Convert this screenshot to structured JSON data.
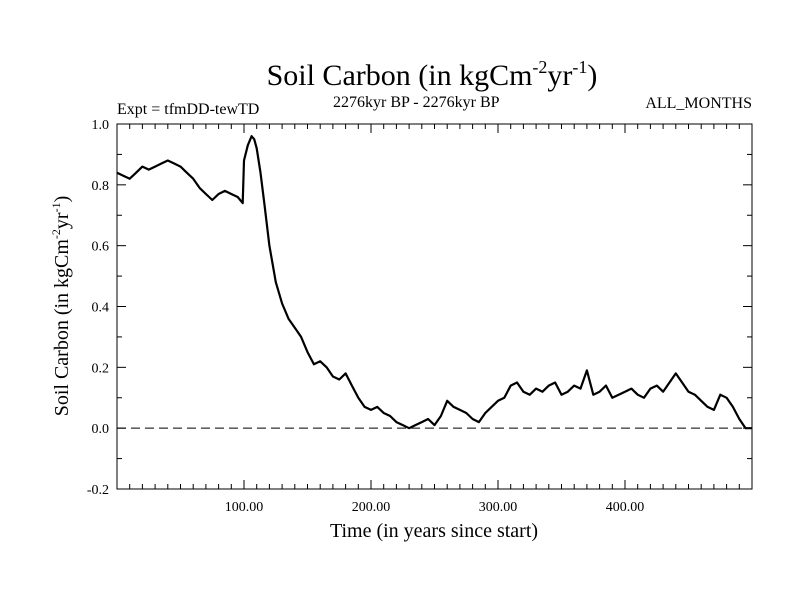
{
  "chart_data": {
    "type": "line",
    "title": {
      "prefix": "Soil Carbon (in kgCm",
      "exp1": "-2",
      "mid": "yr",
      "exp2": "-1",
      "suffix": ")"
    },
    "expt_label": "Expt = tfmDD-tewTD",
    "period_label": "2276kyr BP - 2276kyr BP",
    "months_label": "ALL_MONTHS",
    "xlabel": "Time (in years since start)",
    "ylabel": {
      "prefix": "Soil Carbon (in kgCm",
      "exp1": "-2",
      "mid": "yr",
      "exp2": "-1",
      "suffix": ")"
    },
    "xlim": [
      0,
      500
    ],
    "ylim": [
      -0.2,
      1.0
    ],
    "xticks": [
      100,
      200,
      300,
      400
    ],
    "xtick_labels": [
      "100.00",
      "200.00",
      "300.00",
      "400.00"
    ],
    "yticks": [
      -0.2,
      0.0,
      0.2,
      0.4,
      0.6,
      0.8,
      1.0
    ],
    "ytick_labels": [
      "-0.2",
      "0.0",
      "0.2",
      "0.4",
      "0.6",
      "0.8",
      "1.0"
    ],
    "reference_line": {
      "y": 0.0,
      "style": "dashed"
    },
    "grid": false,
    "series": [
      {
        "name": "Soil Carbon",
        "x": [
          0,
          5,
          10,
          15,
          20,
          25,
          30,
          35,
          40,
          45,
          50,
          55,
          60,
          65,
          70,
          75,
          80,
          85,
          90,
          95,
          99,
          100,
          103,
          106,
          108,
          110,
          113,
          116,
          120,
          125,
          130,
          135,
          140,
          145,
          150,
          155,
          160,
          165,
          170,
          175,
          180,
          185,
          190,
          195,
          200,
          205,
          210,
          215,
          220,
          225,
          230,
          235,
          240,
          245,
          250,
          255,
          260,
          265,
          270,
          275,
          280,
          285,
          290,
          295,
          300,
          305,
          310,
          315,
          320,
          325,
          330,
          335,
          340,
          345,
          350,
          355,
          360,
          365,
          370,
          375,
          380,
          385,
          390,
          395,
          400,
          405,
          410,
          415,
          420,
          425,
          430,
          435,
          440,
          445,
          450,
          455,
          460,
          465,
          470,
          475,
          480,
          485,
          490,
          495,
          500
        ],
        "y": [
          0.84,
          0.83,
          0.82,
          0.84,
          0.86,
          0.85,
          0.86,
          0.87,
          0.88,
          0.87,
          0.86,
          0.84,
          0.82,
          0.79,
          0.77,
          0.75,
          0.77,
          0.78,
          0.77,
          0.76,
          0.74,
          0.88,
          0.93,
          0.96,
          0.95,
          0.92,
          0.84,
          0.74,
          0.6,
          0.48,
          0.41,
          0.36,
          0.33,
          0.3,
          0.25,
          0.21,
          0.22,
          0.2,
          0.17,
          0.16,
          0.18,
          0.14,
          0.1,
          0.07,
          0.06,
          0.07,
          0.05,
          0.04,
          0.02,
          0.01,
          0.0,
          0.01,
          0.02,
          0.03,
          0.01,
          0.04,
          0.09,
          0.07,
          0.06,
          0.05,
          0.03,
          0.02,
          0.05,
          0.07,
          0.09,
          0.1,
          0.14,
          0.15,
          0.12,
          0.11,
          0.13,
          0.12,
          0.14,
          0.15,
          0.11,
          0.12,
          0.14,
          0.13,
          0.19,
          0.11,
          0.12,
          0.14,
          0.1,
          0.11,
          0.12,
          0.13,
          0.11,
          0.1,
          0.13,
          0.14,
          0.12,
          0.15,
          0.18,
          0.15,
          0.12,
          0.11,
          0.09,
          0.07,
          0.06,
          0.11,
          0.1,
          0.07,
          0.03,
          0.0,
          0.0
        ]
      }
    ]
  }
}
